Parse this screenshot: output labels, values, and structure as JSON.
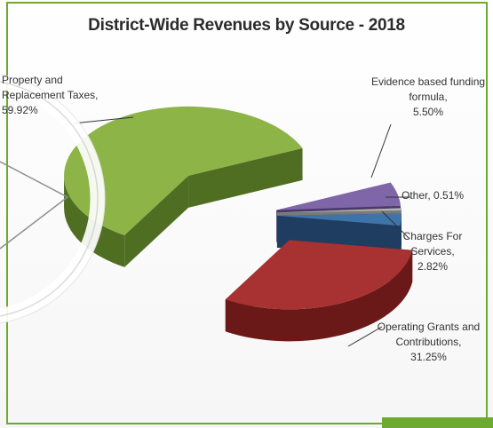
{
  "theme": {
    "frame_border": "#6cab2f",
    "series_colors": [
      "#7f66a8",
      "#b5b5b5",
      "#3f74a8",
      "#a83232",
      "#8db447"
    ],
    "series_dark_colors": [
      "#4a3a6a",
      "#7a7a7a",
      "#1f3d60",
      "#6a1818",
      "#4f6e22"
    ]
  },
  "chart_data": {
    "type": "pie",
    "style": "3d-exploded",
    "title": "District-Wide Revenues by Source - 2018",
    "legend": "none",
    "slices": [
      {
        "label": "Evidence based funding formula,",
        "value": 5.5,
        "value_label": "5.50%"
      },
      {
        "label": "Other,",
        "value": 0.51,
        "value_label": "0.51%"
      },
      {
        "label": "Charges For Services,",
        "value": 2.82,
        "value_label": "2.82%"
      },
      {
        "label": "Operating Grants and Contributions,",
        "value": 31.25,
        "value_label": "31.25%"
      },
      {
        "label": "Property and Replacement Taxes,",
        "value": 59.92,
        "value_label": "59.92%"
      }
    ]
  },
  "overlay": {
    "icon": "play-button-circle-icon"
  }
}
